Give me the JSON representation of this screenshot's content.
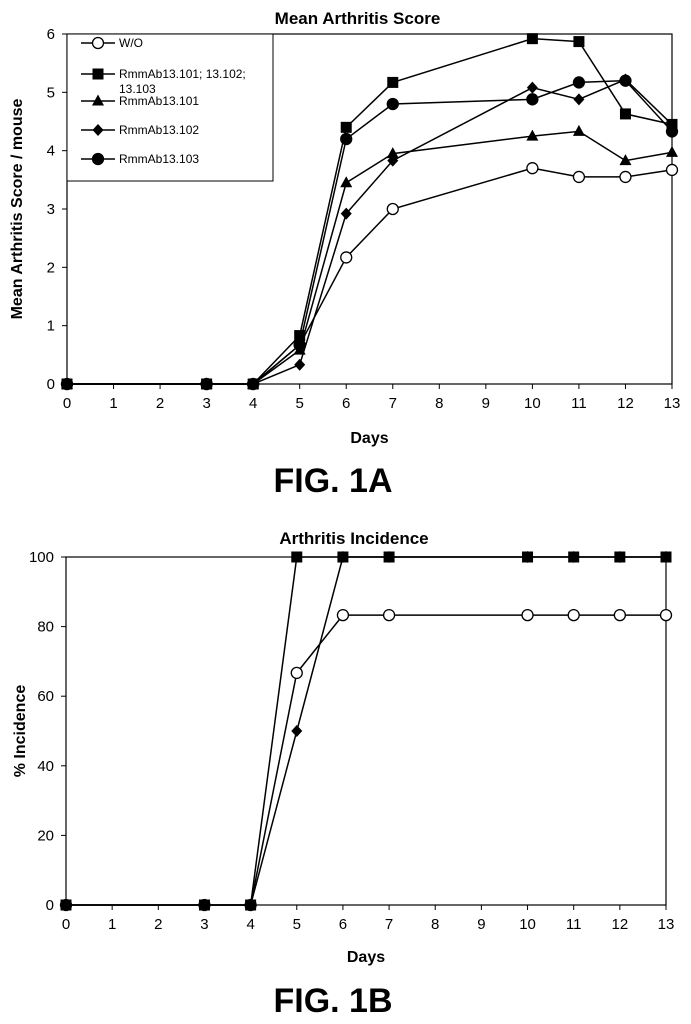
{
  "chart_data": [
    {
      "type": "line",
      "title": "Mean Arthritis Score",
      "xlabel": "Days",
      "ylabel": "Mean Arthritis Score / mouse",
      "figure_label": "FIG. 1A",
      "x_ticks": [
        0,
        1,
        2,
        3,
        4,
        5,
        6,
        7,
        8,
        9,
        10,
        11,
        12,
        13
      ],
      "y_ticks": [
        0,
        1,
        2,
        3,
        4,
        5,
        6
      ],
      "xlim": [
        0,
        13
      ],
      "ylim": [
        0,
        6
      ],
      "grid": false,
      "legend_position": "top-left",
      "series": [
        {
          "name": "W/O",
          "marker": "circle-open",
          "x": [
            0,
            3,
            4,
            5,
            6,
            7,
            10,
            11,
            12,
            13
          ],
          "y": [
            0,
            0,
            0,
            0.67,
            2.17,
            3.0,
            3.7,
            3.55,
            3.55,
            3.67
          ]
        },
        {
          "name": "RmmAb13.101; 13.102; 13.103",
          "marker": "square",
          "x": [
            0,
            3,
            4,
            5,
            6,
            7,
            10,
            11,
            12,
            13
          ],
          "y": [
            0,
            0,
            0,
            0.83,
            4.4,
            5.17,
            5.92,
            5.87,
            4.63,
            4.45
          ]
        },
        {
          "name": "RmmAb13.101",
          "marker": "triangle",
          "x": [
            0,
            3,
            4,
            5,
            6,
            7,
            10,
            11,
            12,
            13
          ],
          "y": [
            0,
            0,
            0,
            0.58,
            3.45,
            3.95,
            4.25,
            4.33,
            3.83,
            3.97
          ]
        },
        {
          "name": "RmmAb13.102",
          "marker": "diamond",
          "x": [
            0,
            3,
            4,
            5,
            6,
            7,
            10,
            11,
            12,
            13
          ],
          "y": [
            0,
            0,
            0,
            0.33,
            2.92,
            3.83,
            5.08,
            4.88,
            5.22,
            4.45
          ]
        },
        {
          "name": "RmmAb13.103",
          "marker": "circle",
          "x": [
            0,
            3,
            4,
            5,
            6,
            7,
            10,
            11,
            12,
            13
          ],
          "y": [
            0,
            0,
            0,
            0.67,
            4.2,
            4.8,
            4.88,
            5.17,
            5.2,
            4.33
          ]
        }
      ]
    },
    {
      "type": "line",
      "title": "Arthritis Incidence",
      "xlabel": "Days",
      "ylabel": "% Incidence",
      "figure_label": "FIG. 1B",
      "x_ticks": [
        0,
        1,
        2,
        3,
        4,
        5,
        6,
        7,
        8,
        9,
        10,
        11,
        12,
        13
      ],
      "y_ticks": [
        0,
        20,
        40,
        60,
        80,
        100
      ],
      "xlim": [
        0,
        13
      ],
      "ylim": [
        0,
        100
      ],
      "grid": false,
      "series": [
        {
          "marker": "circle-open",
          "x": [
            0,
            3,
            4,
            5,
            6,
            7,
            10,
            11,
            12,
            13
          ],
          "y": [
            0,
            0,
            0,
            66.7,
            83.3,
            83.3,
            83.3,
            83.3,
            83.3,
            83.3
          ]
        },
        {
          "marker": "diamond",
          "x": [
            0,
            3,
            4,
            5,
            6,
            7,
            10,
            11,
            12,
            13
          ],
          "y": [
            0,
            0,
            0,
            50,
            100,
            100,
            100,
            100,
            100,
            100
          ]
        },
        {
          "marker": "square",
          "x": [
            0,
            3,
            4,
            5,
            6,
            7,
            10,
            11,
            12,
            13
          ],
          "y": [
            0,
            0,
            0,
            100,
            100,
            100,
            100,
            100,
            100,
            100
          ]
        }
      ]
    }
  ]
}
